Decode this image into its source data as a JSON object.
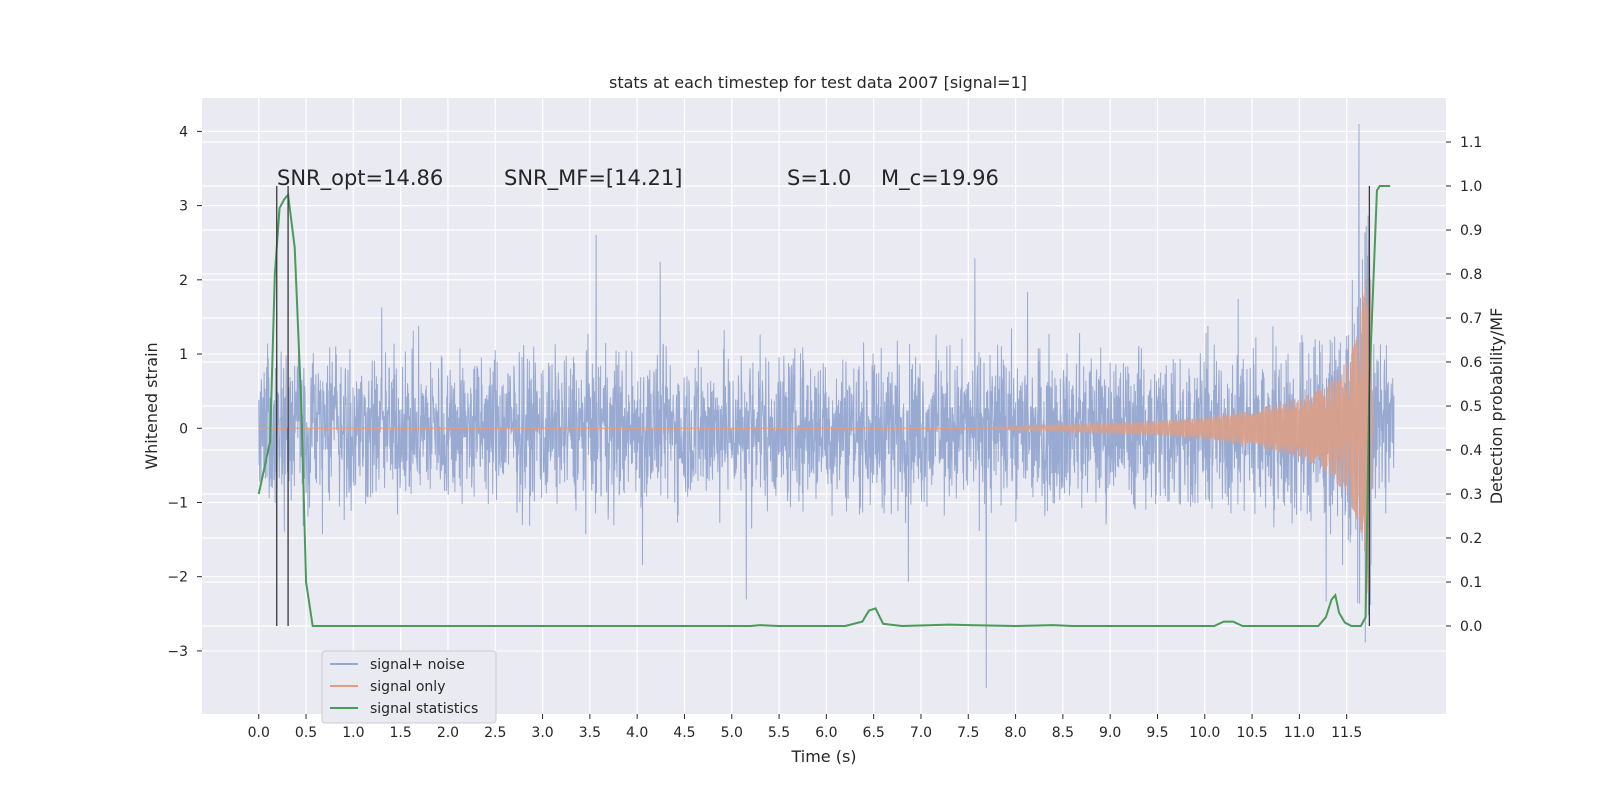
{
  "chart_data": {
    "type": "line",
    "title": "stats at each timestep for test data 2007 [signal=1]",
    "xlabel": "Time (s)",
    "ylabel_left": "Whitened strain",
    "ylabel_right": "Detection probability/MF",
    "xlim": [
      -0.6,
      12.55
    ],
    "ylim_left": [
      -3.85,
      4.45
    ],
    "ylim_right": [
      -0.2,
      1.2
    ],
    "x_ticks": [
      0.0,
      0.5,
      1.0,
      1.5,
      2.0,
      2.5,
      3.0,
      3.5,
      4.0,
      4.5,
      5.0,
      5.5,
      6.0,
      6.5,
      7.0,
      7.5,
      8.0,
      8.5,
      9.0,
      9.5,
      10.0,
      10.5,
      11.0,
      11.5
    ],
    "x_tick_labels": [
      "0.0",
      "0.5",
      "1.0",
      "1.5",
      "2.0",
      "2.5",
      "3.0",
      "3.5",
      "4.0",
      "4.5",
      "5.0",
      "5.5",
      "6.0",
      "6.5",
      "7.0",
      "7.5",
      "8.0",
      "8.5",
      "9.0",
      "9.5",
      "10.0",
      "10.5",
      "11.0",
      "11.5"
    ],
    "y_left_ticks": [
      -3,
      -2,
      -1,
      0,
      1,
      2,
      3,
      4
    ],
    "y_left_tick_labels": [
      "−3",
      "−2",
      "−1",
      "0",
      "1",
      "2",
      "3",
      "4"
    ],
    "y_right_ticks": [
      0.0,
      0.1,
      0.2,
      0.3,
      0.4,
      0.5,
      0.6,
      0.7,
      0.8,
      0.9,
      1.0,
      1.1
    ],
    "y_right_tick_labels": [
      "0.0",
      "0.1",
      "0.2",
      "0.3",
      "0.4",
      "0.5",
      "0.6",
      "0.7",
      "0.8",
      "0.9",
      "1.0",
      "1.1"
    ],
    "grid": true,
    "legend_position": "lower-left",
    "annotations": [
      {
        "text": "SNR_opt=14.86"
      },
      {
        "text": "SNR_MF=[14.21]"
      },
      {
        "text": "S=1.0"
      },
      {
        "text": "M_c=19.96"
      }
    ],
    "vertical_lines_x": [
      0.19,
      0.31,
      11.74
    ],
    "noise": {
      "name": "signal+ noise",
      "x_range": [
        0.0,
        12.0
      ],
      "typical_band": [
        -1.5,
        1.5
      ],
      "max": 4.1,
      "max_x": 11.63,
      "min": -3.5,
      "min_x": 7.69,
      "color": "#94a7d0"
    },
    "signal": {
      "name": "signal only",
      "x_range": [
        0.0,
        11.78
      ],
      "x": [
        0.0,
        7.5,
        8.5,
        9.5,
        10.0,
        10.5,
        11.0,
        11.3,
        11.5,
        11.6,
        11.65,
        11.7,
        11.74,
        11.78
      ],
      "envelope": [
        0.0,
        0.0,
        0.05,
        0.1,
        0.15,
        0.25,
        0.4,
        0.6,
        0.9,
        1.2,
        1.6,
        2.1,
        2.5,
        0.0
      ],
      "color": "#dd9f86"
    },
    "statistics": {
      "name": "signal statistics",
      "x": [
        0.0,
        0.12,
        0.17,
        0.22,
        0.27,
        0.31,
        0.38,
        0.45,
        0.5,
        0.57,
        5.2,
        5.3,
        5.5,
        6.2,
        6.38,
        6.45,
        6.52,
        6.6,
        6.8,
        7.3,
        7.5,
        8.0,
        8.4,
        8.6,
        10.1,
        10.2,
        10.3,
        10.4,
        11.2,
        11.28,
        11.34,
        11.38,
        11.42,
        11.48,
        11.55,
        11.65,
        11.7,
        11.74,
        11.82,
        11.85,
        11.9,
        11.96
      ],
      "y": [
        0.3,
        0.42,
        0.8,
        0.95,
        0.97,
        0.98,
        0.86,
        0.5,
        0.1,
        0.0,
        0.0,
        0.002,
        0.0,
        0.0,
        0.01,
        0.035,
        0.04,
        0.005,
        0.0,
        0.003,
        0.002,
        0.0,
        0.002,
        0.0,
        0.0,
        0.01,
        0.01,
        0.0,
        0.0,
        0.02,
        0.06,
        0.07,
        0.03,
        0.008,
        0.0,
        0.0,
        0.02,
        0.55,
        0.99,
        1.0,
        1.0,
        1.0
      ],
      "color": "#4a9a59"
    }
  }
}
